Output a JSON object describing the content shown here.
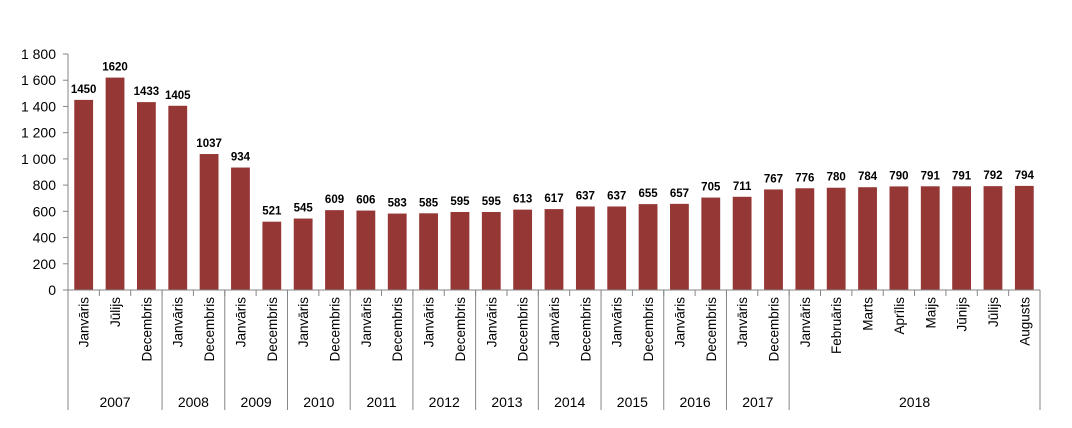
{
  "chart_data": {
    "type": "bar",
    "ylim": [
      0,
      1800
    ],
    "yticks": [
      0,
      200,
      400,
      600,
      800,
      1000,
      1200,
      1400,
      1600,
      1800
    ],
    "ytick_labels": [
      "0",
      "200",
      "400",
      "600",
      "800",
      "1 000",
      "1 200",
      "1 400",
      "1 600",
      "1 800"
    ],
    "grid": false,
    "bar_color": "#953735",
    "highlight_label_color": "#953735",
    "highlight_index": 30,
    "categories": [
      "Janvāris",
      "Jūlijs",
      "Decembris",
      "Janvāris",
      "Decembris",
      "Janvāris",
      "Decembris",
      "Janvāris",
      "Decembris",
      "Janvāris",
      "Decembris",
      "Janvāris",
      "Decembris",
      "Janvāris",
      "Decembris",
      "Janvāris",
      "Decembris",
      "Janvāris",
      "Decembris",
      "Janvāris",
      "Decembris",
      "Janvāris",
      "Decembris",
      "Janvāris",
      "Februāris",
      "Marts",
      "Aprīlis",
      "Maijs",
      "Jūnijs",
      "Jūlijs",
      "Augusts"
    ],
    "values": [
      1450,
      1620,
      1433,
      1405,
      1037,
      934,
      521,
      545,
      609,
      606,
      583,
      585,
      595,
      595,
      613,
      617,
      637,
      637,
      655,
      657,
      705,
      711,
      767,
      776,
      780,
      784,
      790,
      791,
      791,
      792,
      794
    ],
    "data_labels": [
      "1450",
      "1620",
      "1433",
      "1405",
      "1037",
      "934",
      "521",
      "545",
      "609",
      "606",
      "583",
      "585",
      "595",
      "595",
      "613",
      "617",
      "637",
      "637",
      "655",
      "657",
      "705",
      "711",
      "767",
      "776",
      "780",
      "784",
      "790",
      "791",
      "791",
      "792",
      "794"
    ],
    "years": [
      {
        "label": "2007",
        "count": 3
      },
      {
        "label": "2008",
        "count": 2
      },
      {
        "label": "2009",
        "count": 2
      },
      {
        "label": "2010",
        "count": 2
      },
      {
        "label": "2011",
        "count": 2
      },
      {
        "label": "2012",
        "count": 2
      },
      {
        "label": "2013",
        "count": 2
      },
      {
        "label": "2014",
        "count": 2
      },
      {
        "label": "2015",
        "count": 2
      },
      {
        "label": "2016",
        "count": 2
      },
      {
        "label": "2017",
        "count": 2
      },
      {
        "label": "2018",
        "count": 8
      }
    ]
  }
}
